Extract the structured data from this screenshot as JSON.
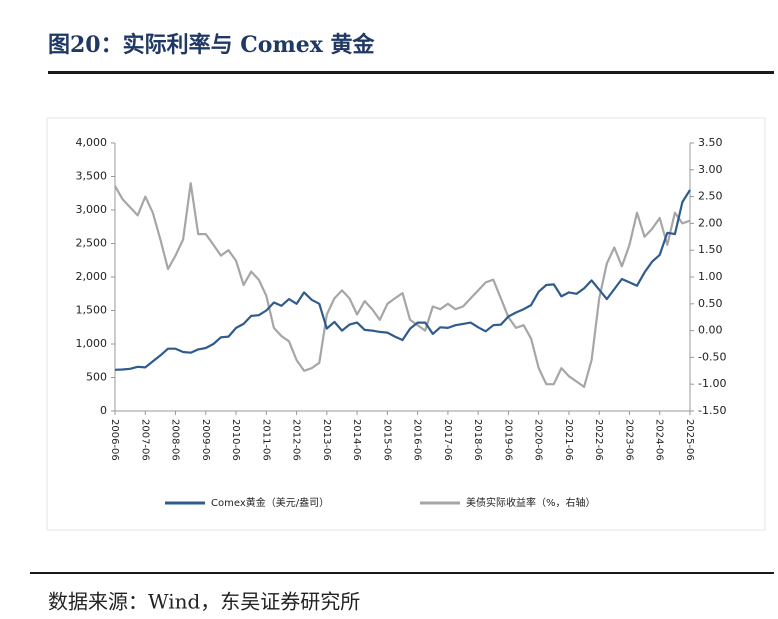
{
  "chart_data": {
    "type": "line",
    "title": "图20：实际利率与 Comex 黄金",
    "source": "数据来源：Wind，东吴证券研究所",
    "categories": [
      "2006-06",
      null,
      null,
      null,
      "2007-06",
      null,
      null,
      null,
      "2008-06",
      null,
      null,
      null,
      "2009-06",
      null,
      null,
      null,
      "2010-06",
      null,
      null,
      null,
      "2011-06",
      null,
      null,
      null,
      "2012-06",
      null,
      null,
      null,
      "2013-06",
      null,
      null,
      null,
      "2014-06",
      null,
      null,
      null,
      "2015-06",
      null,
      null,
      null,
      "2016-06",
      null,
      null,
      null,
      "2017-06",
      null,
      null,
      null,
      "2018-06",
      null,
      null,
      null,
      "2019-06",
      null,
      null,
      null,
      "2020-06",
      null,
      null,
      null,
      "2021-06",
      null,
      null,
      null,
      "2022-06",
      null,
      null,
      null,
      "2023-06",
      null,
      null,
      null,
      "2024-06",
      null,
      null,
      null,
      "2025-06"
    ],
    "series": [
      {
        "name": "Comex黄金（美元/盎司）",
        "color": "#2f5b8e",
        "axis": "y",
        "values": [
          615,
          620,
          630,
          660,
          650,
          740,
          830,
          930,
          930,
          880,
          870,
          920,
          940,
          1000,
          1100,
          1110,
          1240,
          1300,
          1420,
          1430,
          1500,
          1620,
          1570,
          1670,
          1600,
          1770,
          1660,
          1600,
          1230,
          1330,
          1200,
          1290,
          1320,
          1210,
          1200,
          1180,
          1170,
          1110,
          1060,
          1230,
          1320,
          1320,
          1150,
          1250,
          1240,
          1280,
          1300,
          1320,
          1250,
          1190,
          1280,
          1290,
          1410,
          1470,
          1520,
          1580,
          1780,
          1880,
          1890,
          1710,
          1770,
          1750,
          1830,
          1950,
          1810,
          1670,
          1820,
          1970,
          1920,
          1870,
          2070,
          2230,
          2330,
          2660,
          2640,
          3120,
          3300
        ]
      },
      {
        "name": "美债实际收益率（%，右轴）",
        "color": "#a6a6a6",
        "axis": "y2",
        "values": [
          2.7,
          2.45,
          2.3,
          2.15,
          2.5,
          2.2,
          1.7,
          1.15,
          1.4,
          1.7,
          2.75,
          1.8,
          1.8,
          1.6,
          1.4,
          1.5,
          1.3,
          0.85,
          1.1,
          0.95,
          0.65,
          0.05,
          -0.1,
          -0.2,
          -0.55,
          -0.75,
          -0.7,
          -0.6,
          0.3,
          0.6,
          0.75,
          0.6,
          0.3,
          0.55,
          0.4,
          0.2,
          0.5,
          0.6,
          0.7,
          0.2,
          0.1,
          0.0,
          0.45,
          0.4,
          0.5,
          0.4,
          0.45,
          0.6,
          0.75,
          0.9,
          0.95,
          0.6,
          0.25,
          0.05,
          0.1,
          -0.15,
          -0.7,
          -1.0,
          -1.0,
          -0.7,
          -0.85,
          -0.95,
          -1.05,
          -0.55,
          0.6,
          1.25,
          1.55,
          1.2,
          1.6,
          2.2,
          1.75,
          1.9,
          2.1,
          1.6,
          2.2,
          2.0,
          2.05
        ]
      }
    ],
    "ylim": [
      0,
      4000
    ],
    "yticks": [
      0,
      500,
      {
        "value": 1000,
        "label": "1,000"
      },
      {
        "value": 1500,
        "label": "1,500"
      },
      {
        "value": 2000,
        "label": "2,000"
      },
      {
        "value": 2500,
        "label": "2,500"
      },
      {
        "value": 3000,
        "label": "3,000"
      },
      {
        "value": 3500,
        "label": "3,500"
      },
      {
        "value": 4000,
        "label": "4,000"
      }
    ],
    "y2lim": [
      -1.5,
      3.5
    ],
    "y2ticks": [
      {
        "value": -1.5,
        "label": "-1.50"
      },
      {
        "value": -1.0,
        "label": "-1.00"
      },
      {
        "value": -0.5,
        "label": "-0.50"
      },
      {
        "value": 0,
        "label": "0.00"
      },
      {
        "value": 0.5,
        "label": "0.50"
      },
      {
        "value": 1.0,
        "label": "1.00"
      },
      {
        "value": 1.5,
        "label": "1.50"
      },
      {
        "value": 2.0,
        "label": "2.00"
      },
      {
        "value": 2.5,
        "label": "2.50"
      },
      {
        "value": 3.0,
        "label": "3.00"
      },
      {
        "value": 3.5,
        "label": "3.50"
      }
    ],
    "legend": "bottom"
  }
}
